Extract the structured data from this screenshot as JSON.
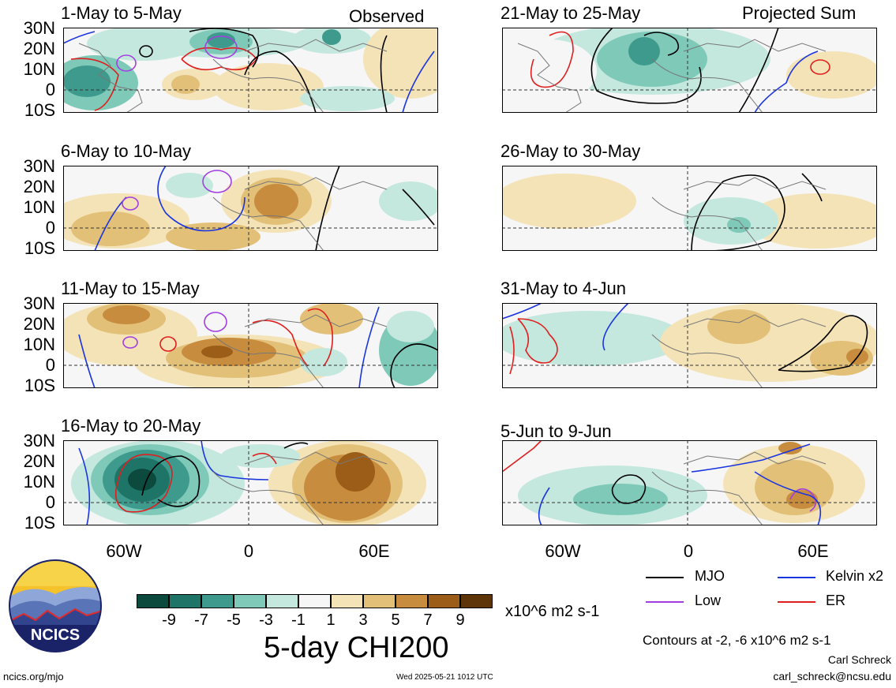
{
  "panels": {
    "p1": {
      "title": "1-May to 5-May",
      "label": "Observed"
    },
    "p2": {
      "title": "6-May to 10-May",
      "label": ""
    },
    "p3": {
      "title": "11-May to 15-May",
      "label": ""
    },
    "p4": {
      "title": "16-May to 20-May",
      "label": ""
    },
    "p5": {
      "title": "21-May to 25-May",
      "label": "Projected Sum"
    },
    "p6": {
      "title": "26-May to 30-May",
      "label": ""
    },
    "p7": {
      "title": "31-May to 4-Jun",
      "label": ""
    },
    "p8": {
      "title": "5-Jun to 9-Jun",
      "label": ""
    }
  },
  "lat_labels": [
    "30N",
    "20N",
    "10N",
    "0",
    "10S"
  ],
  "lon_labels": [
    "60W",
    "0",
    "60E"
  ],
  "colorbar": {
    "ticks": [
      "-9",
      "-7",
      "-5",
      "-3",
      "-1",
      "1",
      "3",
      "5",
      "7",
      "9"
    ],
    "colors": [
      "#0c4a3e",
      "#1f7468",
      "#3e9a8c",
      "#7fc9b9",
      "#c4e8de",
      "#f6f6f6",
      "#f4e3b7",
      "#e2c078",
      "#c88c3e",
      "#9c5d18",
      "#5e3508"
    ],
    "units": "x10^6 m2 s-1",
    "title": "5-day CHI200"
  },
  "legend": {
    "mjo": "MJO",
    "kelvin": "Kelvin x2",
    "low": "Low",
    "er": "ER",
    "colors": {
      "mjo": "#000000",
      "kelvin": "#1a35e0",
      "low": "#a23ee0",
      "er": "#e01e1e"
    },
    "contours_note": "Contours at -2, -6 x10^6 m2 s-1"
  },
  "logo": {
    "text": "NCICS"
  },
  "footer": {
    "url": "ncics.org/mjo",
    "timestamp": "Wed 2025-05-21 1012 UTC",
    "author": "Carl Schreck",
    "email": "carl_schreck@ncsu.edu"
  }
}
